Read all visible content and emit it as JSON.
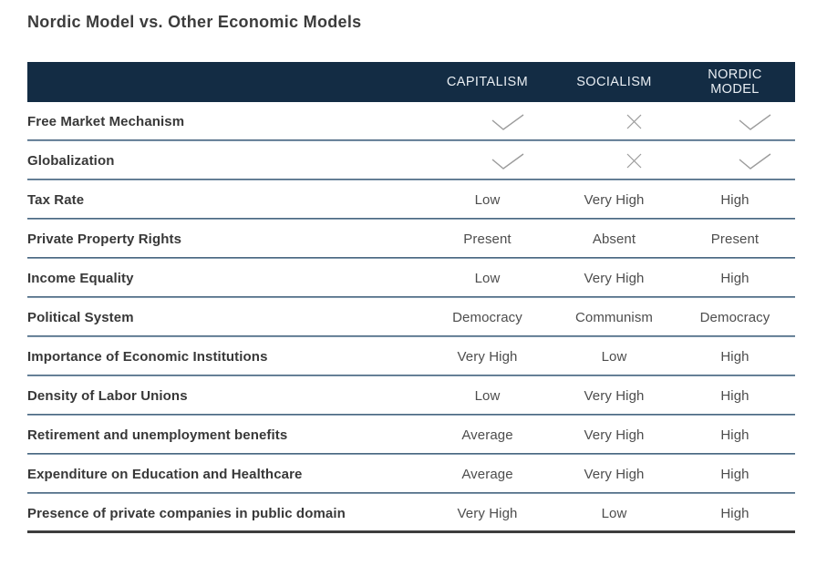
{
  "chart_data": {
    "type": "table",
    "title": "Nordic Model vs. Other Economic Models",
    "value_columns": [
      "CAPITALISM",
      "SOCIALISM",
      "NORDIC MODEL"
    ],
    "rows": [
      {
        "label": "Free Market Mechanism",
        "type": "icons",
        "values": [
          "check",
          "cross",
          "check"
        ]
      },
      {
        "label": "Globalization",
        "type": "icons",
        "values": [
          "check",
          "cross",
          "check"
        ]
      },
      {
        "label": "Tax Rate",
        "type": "text",
        "values": [
          "Low",
          "Very High",
          "High"
        ]
      },
      {
        "label": "Private Property Rights",
        "type": "text",
        "values": [
          "Present",
          "Absent",
          "Present"
        ]
      },
      {
        "label": "Income Equality",
        "type": "text",
        "values": [
          "Low",
          "Very High",
          "High"
        ]
      },
      {
        "label": "Political System",
        "type": "text",
        "values": [
          "Democracy",
          "Communism",
          "Democracy"
        ]
      },
      {
        "label": "Importance of Economic Institutions",
        "type": "text",
        "values": [
          "Very High",
          "Low",
          "High"
        ]
      },
      {
        "label": "Density of Labor Unions",
        "type": "text",
        "values": [
          "Low",
          "Very High",
          "High"
        ]
      },
      {
        "label": "Retirement and unemployment benefits",
        "type": "text",
        "values": [
          "Average",
          "Very High",
          "High"
        ]
      },
      {
        "label": "Expenditure on Education and Healthcare",
        "type": "text",
        "values": [
          "Average",
          "Very High",
          "High"
        ]
      },
      {
        "label": "Presence of private companies in public domain",
        "type": "text",
        "values": [
          "Very High",
          "Low",
          "High"
        ]
      }
    ]
  },
  "icons": {
    "check": "check-icon",
    "cross": "cross-icon"
  },
  "colors": {
    "header_bg": "#132c44",
    "header_text": "#e9eef3",
    "title_text": "#3c3c3c",
    "label_text": "#383838",
    "value_text": "#4d4d4d",
    "mark_stroke": "#9b9b9b",
    "separator_top": "#2e4e6a",
    "separator_bottom": "#9fb4c5",
    "bottom_border": "#3d3d3d"
  }
}
